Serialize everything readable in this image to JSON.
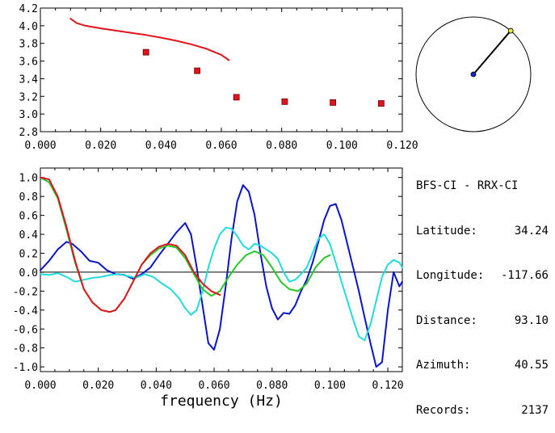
{
  "chart_data": [
    {
      "type": "scatter",
      "title": "",
      "xlabel": "",
      "ylabel": "",
      "xlim": [
        0.0,
        0.12
      ],
      "ylim": [
        2.8,
        4.2
      ],
      "x_ticks": [
        "0.000",
        "0.020",
        "0.040",
        "0.060",
        "0.080",
        "0.100",
        "0.120"
      ],
      "y_ticks": [
        "2.8",
        "3.0",
        "3.2",
        "3.4",
        "3.6",
        "3.8",
        "4.0",
        "4.2"
      ],
      "grid": false,
      "series": [
        {
          "kind": "line",
          "color": "#e0141e",
          "x": [
            0.01,
            0.012,
            0.015,
            0.02,
            0.025,
            0.03,
            0.035,
            0.04,
            0.045,
            0.05,
            0.055,
            0.06,
            0.0625
          ],
          "y": [
            4.08,
            4.03,
            4.0,
            3.97,
            3.945,
            3.92,
            3.895,
            3.865,
            3.83,
            3.79,
            3.74,
            3.67,
            3.61
          ]
        },
        {
          "kind": "points",
          "color": "#e0141e",
          "x": [
            0.035,
            0.052,
            0.065,
            0.081,
            0.097,
            0.113
          ],
          "y": [
            3.7,
            3.49,
            3.19,
            3.14,
            3.13,
            3.12
          ]
        }
      ]
    },
    {
      "type": "line",
      "title": "",
      "xlabel": "frequency (Hz)",
      "ylabel": "",
      "xlim": [
        0.0,
        0.125
      ],
      "ylim": [
        -1.05,
        1.1
      ],
      "x_ticks": [
        "0.000",
        "0.020",
        "0.040",
        "0.060",
        "0.080",
        "0.100",
        "0.120"
      ],
      "y_ticks": [
        "1.0",
        "0.8",
        "0.6",
        "0.4",
        "0.2",
        "0.0",
        "-0.2",
        "-0.4",
        "-0.6",
        "-0.8",
        "-1.0"
      ],
      "grid": false,
      "zero_line": true,
      "series": [
        {
          "color": "#0a14c8",
          "x": [
            0.0,
            0.003,
            0.006,
            0.009,
            0.011,
            0.014,
            0.017,
            0.02,
            0.023,
            0.026,
            0.029,
            0.032,
            0.035,
            0.038,
            0.041,
            0.044,
            0.047,
            0.05,
            0.052,
            0.054,
            0.056,
            0.058,
            0.06,
            0.062,
            0.064,
            0.066,
            0.068,
            0.07,
            0.072,
            0.074,
            0.076,
            0.078,
            0.08,
            0.082,
            0.084,
            0.086,
            0.088,
            0.09,
            0.092,
            0.094,
            0.096,
            0.098,
            0.1,
            0.102,
            0.104,
            0.106,
            0.108,
            0.11,
            0.112,
            0.114,
            0.116,
            0.118,
            0.12,
            0.122,
            0.124,
            0.125
          ],
          "y": [
            0.02,
            0.12,
            0.24,
            0.32,
            0.3,
            0.22,
            0.12,
            0.1,
            0.02,
            -0.02,
            -0.03,
            -0.07,
            -0.02,
            0.05,
            0.18,
            0.3,
            0.42,
            0.52,
            0.4,
            0.05,
            -0.35,
            -0.75,
            -0.82,
            -0.6,
            -0.15,
            0.35,
            0.75,
            0.92,
            0.85,
            0.6,
            0.2,
            -0.15,
            -0.38,
            -0.5,
            -0.43,
            -0.44,
            -0.35,
            -0.2,
            -0.08,
            0.1,
            0.32,
            0.55,
            0.7,
            0.72,
            0.55,
            0.3,
            0.05,
            -0.2,
            -0.48,
            -0.75,
            -1.0,
            -0.95,
            -0.4,
            0.0,
            -0.15,
            -0.1
          ]
        },
        {
          "color": "#22dcdc",
          "x": [
            0.0,
            0.003,
            0.006,
            0.009,
            0.012,
            0.015,
            0.018,
            0.021,
            0.024,
            0.027,
            0.03,
            0.033,
            0.036,
            0.039,
            0.042,
            0.045,
            0.048,
            0.05,
            0.052,
            0.054,
            0.056,
            0.058,
            0.06,
            0.062,
            0.064,
            0.066,
            0.068,
            0.07,
            0.072,
            0.074,
            0.076,
            0.078,
            0.08,
            0.082,
            0.084,
            0.086,
            0.088,
            0.09,
            0.092,
            0.094,
            0.096,
            0.098,
            0.1,
            0.102,
            0.104,
            0.106,
            0.108,
            0.11,
            0.112,
            0.114,
            0.116,
            0.118,
            0.12,
            0.122,
            0.124,
            0.125
          ],
          "y": [
            -0.02,
            -0.03,
            -0.01,
            -0.05,
            -0.1,
            -0.08,
            -0.06,
            -0.05,
            -0.03,
            -0.02,
            -0.04,
            -0.06,
            -0.02,
            -0.05,
            -0.12,
            -0.18,
            -0.28,
            -0.38,
            -0.45,
            -0.4,
            -0.2,
            0.05,
            0.25,
            0.4,
            0.47,
            0.46,
            0.38,
            0.28,
            0.24,
            0.3,
            0.28,
            0.24,
            0.2,
            0.14,
            0.0,
            -0.1,
            -0.08,
            -0.02,
            0.05,
            0.2,
            0.35,
            0.4,
            0.3,
            0.1,
            -0.1,
            -0.3,
            -0.5,
            -0.68,
            -0.72,
            -0.55,
            -0.3,
            -0.05,
            0.08,
            0.13,
            0.1,
            0.05
          ]
        },
        {
          "color": "#28c828",
          "x": [
            0.0,
            0.003,
            0.006,
            0.009,
            0.012,
            0.015,
            0.018,
            0.021,
            0.024,
            0.026,
            0.029,
            0.032,
            0.035,
            0.038,
            0.041,
            0.044,
            0.047,
            0.05,
            0.053,
            0.056,
            0.059,
            0.062,
            0.065,
            0.068,
            0.071,
            0.074,
            0.077,
            0.08,
            0.083,
            0.086,
            0.089,
            0.092,
            0.095,
            0.098,
            0.1
          ],
          "y": [
            1.0,
            0.95,
            0.78,
            0.45,
            0.1,
            -0.18,
            -0.32,
            -0.4,
            -0.42,
            -0.4,
            -0.28,
            -0.1,
            0.08,
            0.18,
            0.25,
            0.28,
            0.26,
            0.15,
            -0.02,
            -0.18,
            -0.25,
            -0.2,
            -0.05,
            0.08,
            0.18,
            0.22,
            0.18,
            0.05,
            -0.1,
            -0.18,
            -0.2,
            -0.12,
            0.05,
            0.15,
            0.18
          ]
        },
        {
          "color": "#e0141e",
          "x": [
            0.0,
            0.003,
            0.006,
            0.009,
            0.012,
            0.015,
            0.018,
            0.021,
            0.024,
            0.026,
            0.029,
            0.032,
            0.035,
            0.038,
            0.041,
            0.044,
            0.047,
            0.05,
            0.053,
            0.056,
            0.059,
            0.062
          ],
          "y": [
            1.0,
            0.98,
            0.8,
            0.48,
            0.12,
            -0.18,
            -0.32,
            -0.4,
            -0.42,
            -0.4,
            -0.28,
            -0.1,
            0.08,
            0.2,
            0.27,
            0.3,
            0.28,
            0.18,
            0.0,
            -0.12,
            -0.2,
            -0.24
          ]
        }
      ]
    }
  ],
  "map_dial": {
    "azimuth_deg": 40.55,
    "center_color": "#1428c8",
    "end_color": "#e6e632"
  },
  "info": {
    "title": "BFS-CI - RRX-CI",
    "rows": [
      {
        "label": "Latitude:",
        "value": "34.24"
      },
      {
        "label": "Longitude:",
        "value": "-117.66"
      },
      {
        "label": "Distance:",
        "value": "93.10"
      },
      {
        "label": "Azimuth:",
        "value": "40.55"
      },
      {
        "label": "Records:",
        "value": "2137"
      }
    ]
  }
}
